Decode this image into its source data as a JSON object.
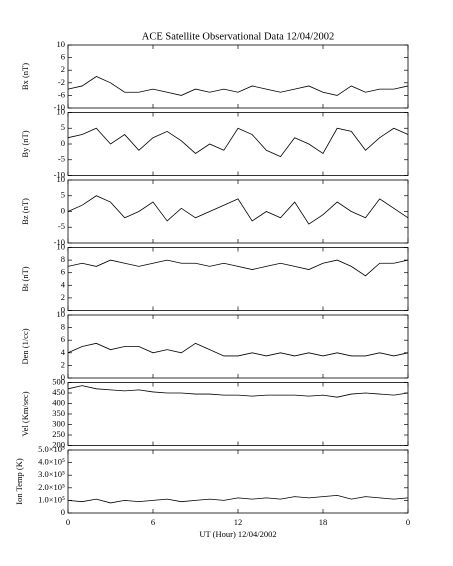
{
  "chart_data": [
    {
      "type": "line",
      "title": "ACE Satellite Observational Data   12/04/2002",
      "ylabel": "Bx (nT)",
      "x": [
        0,
        1,
        2,
        3,
        4,
        5,
        6,
        7,
        8,
        9,
        10,
        11,
        12,
        13,
        14,
        15,
        16,
        17,
        18,
        19,
        20,
        21,
        22,
        23,
        24
      ],
      "series": [
        {
          "color": "#000000",
          "values": [
            -4,
            -3,
            0,
            -2,
            -5,
            -5,
            -4,
            -5,
            -6,
            -4,
            -5,
            -4,
            -5,
            -3,
            -4,
            -5,
            -4,
            -3,
            -5,
            -6,
            -3,
            -5,
            -4,
            -4,
            -3
          ]
        }
      ],
      "xlim": [
        0,
        24
      ],
      "ylim": [
        -10,
        10
      ],
      "yticks": [
        -10,
        -6,
        -2,
        2,
        6,
        10
      ]
    },
    {
      "type": "line",
      "ylabel": "By (nT)",
      "x": [
        0,
        1,
        2,
        3,
        4,
        5,
        6,
        7,
        8,
        9,
        10,
        11,
        12,
        13,
        14,
        15,
        16,
        17,
        18,
        19,
        20,
        21,
        22,
        23,
        24
      ],
      "series": [
        {
          "color": "#000000",
          "values": [
            2,
            3,
            5,
            0,
            3,
            -2,
            2,
            4,
            1,
            -3,
            0,
            -2,
            5,
            3,
            -2,
            -4,
            2,
            0,
            -3,
            5,
            4,
            -2,
            2,
            5,
            3
          ]
        }
      ],
      "xlim": [
        0,
        24
      ],
      "ylim": [
        -10,
        10
      ],
      "yticks": [
        -10,
        -5,
        0,
        5,
        10
      ]
    },
    {
      "type": "line",
      "ylabel": "Bz (nT)",
      "x": [
        0,
        1,
        2,
        3,
        4,
        5,
        6,
        7,
        8,
        9,
        10,
        11,
        12,
        13,
        14,
        15,
        16,
        17,
        18,
        19,
        20,
        21,
        22,
        23,
        24
      ],
      "series": [
        {
          "color": "#000000",
          "values": [
            0,
            2,
            5,
            3,
            -2,
            0,
            3,
            -3,
            1,
            -2,
            0,
            2,
            4,
            -3,
            0,
            -2,
            3,
            -4,
            -1,
            3,
            0,
            -2,
            4,
            1,
            -2
          ]
        }
      ],
      "xlim": [
        0,
        24
      ],
      "ylim": [
        -10,
        10
      ],
      "yticks": [
        -10,
        -5,
        0,
        5,
        10
      ]
    },
    {
      "type": "line",
      "ylabel": "Bt (nT)",
      "x": [
        0,
        1,
        2,
        3,
        4,
        5,
        6,
        7,
        8,
        9,
        10,
        11,
        12,
        13,
        14,
        15,
        16,
        17,
        18,
        19,
        20,
        21,
        22,
        23,
        24
      ],
      "series": [
        {
          "color": "#000000",
          "values": [
            7,
            7.5,
            7,
            8,
            7.5,
            7,
            7.5,
            8,
            7.5,
            7.5,
            7,
            7.5,
            7,
            6.5,
            7,
            7.5,
            7,
            6.5,
            7.5,
            8,
            7,
            5.5,
            7.5,
            7.5,
            8
          ]
        }
      ],
      "xlim": [
        0,
        24
      ],
      "ylim": [
        0,
        10
      ],
      "yticks": [
        0,
        2,
        4,
        6,
        8,
        10
      ]
    },
    {
      "type": "line",
      "ylabel": "Den (1/cc)",
      "x": [
        0,
        1,
        2,
        3,
        4,
        5,
        6,
        7,
        8,
        9,
        10,
        11,
        12,
        13,
        14,
        15,
        16,
        17,
        18,
        19,
        20,
        21,
        22,
        23,
        24
      ],
      "series": [
        {
          "color": "#000000",
          "values": [
            4,
            5,
            5.5,
            4.5,
            5,
            5,
            4,
            4.5,
            4,
            5.5,
            4.5,
            3.5,
            3.5,
            4,
            3.5,
            4,
            3.5,
            4,
            3.5,
            4,
            3.5,
            3.5,
            4,
            3.5,
            4
          ]
        }
      ],
      "xlim": [
        0,
        24
      ],
      "ylim": [
        0,
        10
      ],
      "yticks": [
        0,
        2,
        4,
        6,
        8,
        10
      ]
    },
    {
      "type": "line",
      "ylabel": "Vel (Km/sec)",
      "x": [
        0,
        1,
        2,
        3,
        4,
        5,
        6,
        7,
        8,
        9,
        10,
        11,
        12,
        13,
        14,
        15,
        16,
        17,
        18,
        19,
        20,
        21,
        22,
        23,
        24
      ],
      "series": [
        {
          "color": "#000000",
          "values": [
            470,
            485,
            470,
            465,
            460,
            465,
            455,
            450,
            450,
            445,
            445,
            440,
            440,
            435,
            440,
            440,
            440,
            435,
            440,
            430,
            445,
            450,
            445,
            440,
            450
          ]
        }
      ],
      "xlim": [
        0,
        24
      ],
      "ylim": [
        200,
        500
      ],
      "yticks": [
        200,
        250,
        300,
        350,
        400,
        450,
        500
      ]
    },
    {
      "type": "line",
      "ylabel": "Ion Temp (K)",
      "xlabel": "UT (Hour)  12/04/2002",
      "x": [
        0,
        1,
        2,
        3,
        4,
        5,
        6,
        7,
        8,
        9,
        10,
        11,
        12,
        13,
        14,
        15,
        16,
        17,
        18,
        19,
        20,
        21,
        22,
        23,
        24
      ],
      "series": [
        {
          "color": "#000000",
          "values": [
            100000,
            90000,
            110000,
            80000,
            100000,
            90000,
            100000,
            110000,
            90000,
            100000,
            110000,
            100000,
            120000,
            110000,
            120000,
            110000,
            130000,
            120000,
            130000,
            140000,
            110000,
            130000,
            120000,
            110000,
            120000
          ]
        }
      ],
      "xlim": [
        0,
        24
      ],
      "ylim": [
        0,
        500000
      ],
      "yticks": [
        0,
        {
          "value": 100000,
          "label": "1.0×10⁵"
        },
        {
          "value": 200000,
          "label": "2.0×10⁵"
        },
        {
          "value": 300000,
          "label": "3.0×10⁵"
        },
        {
          "value": 400000,
          "label": "4.0×10⁵"
        },
        {
          "value": 500000,
          "label": "5.0×10⁵"
        }
      ],
      "xticks": [
        0,
        6,
        12,
        18,
        {
          "value": 24,
          "label": "0"
        }
      ]
    }
  ]
}
